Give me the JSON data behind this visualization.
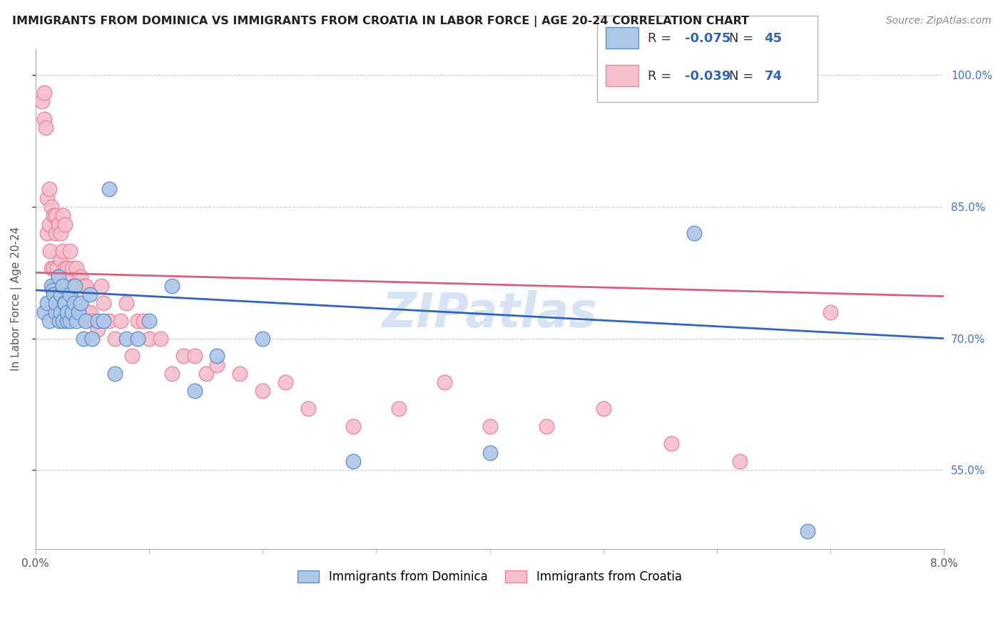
{
  "title": "IMMIGRANTS FROM DOMINICA VS IMMIGRANTS FROM CROATIA IN LABOR FORCE | AGE 20-24 CORRELATION CHART",
  "source": "Source: ZipAtlas.com",
  "ylabel": "In Labor Force | Age 20-24",
  "xlim": [
    0.0,
    0.08
  ],
  "ylim": [
    0.46,
    1.03
  ],
  "xtick_positions": [
    0.0,
    0.08
  ],
  "xtick_labels": [
    "0.0%",
    "8.0%"
  ],
  "ytick_positions": [
    0.55,
    0.7,
    0.85,
    1.0
  ],
  "ytick_labels": [
    "55.0%",
    "70.0%",
    "85.0%",
    "100.0%"
  ],
  "legend_blue_r": "-0.075",
  "legend_blue_n": "45",
  "legend_pink_r": "-0.039",
  "legend_pink_n": "74",
  "blue_fill": "#aec6e8",
  "pink_fill": "#f5bfcc",
  "blue_edge": "#5b8fc9",
  "pink_edge": "#e8839a",
  "blue_line": "#3265b5",
  "pink_line": "#d95f7f",
  "ytick_color": "#4472c4",
  "watermark_color": "#c5d8f0",
  "blue_trend_y0": 0.755,
  "blue_trend_y1": 0.7,
  "pink_trend_y0": 0.775,
  "pink_trend_y1": 0.748,
  "dominica_x": [
    0.0008,
    0.001,
    0.0012,
    0.0014,
    0.0015,
    0.0016,
    0.0018,
    0.0018,
    0.002,
    0.0021,
    0.0022,
    0.0022,
    0.0024,
    0.0024,
    0.0025,
    0.0026,
    0.0028,
    0.0028,
    0.003,
    0.003,
    0.0032,
    0.0034,
    0.0035,
    0.0036,
    0.0038,
    0.004,
    0.0042,
    0.0044,
    0.0048,
    0.005,
    0.0055,
    0.006,
    0.0065,
    0.007,
    0.008,
    0.009,
    0.01,
    0.012,
    0.014,
    0.016,
    0.02,
    0.028,
    0.04,
    0.058,
    0.068
  ],
  "dominica_y": [
    0.73,
    0.74,
    0.72,
    0.76,
    0.755,
    0.75,
    0.73,
    0.74,
    0.77,
    0.72,
    0.73,
    0.75,
    0.76,
    0.72,
    0.74,
    0.74,
    0.72,
    0.73,
    0.75,
    0.72,
    0.73,
    0.74,
    0.76,
    0.72,
    0.73,
    0.74,
    0.7,
    0.72,
    0.75,
    0.7,
    0.72,
    0.72,
    0.87,
    0.66,
    0.7,
    0.7,
    0.72,
    0.76,
    0.64,
    0.68,
    0.7,
    0.56,
    0.57,
    0.82,
    0.48
  ],
  "croatia_x": [
    0.0006,
    0.0008,
    0.0008,
    0.0009,
    0.001,
    0.001,
    0.0012,
    0.0012,
    0.0013,
    0.0014,
    0.0014,
    0.0015,
    0.0016,
    0.0016,
    0.0018,
    0.0018,
    0.0019,
    0.002,
    0.002,
    0.0022,
    0.0022,
    0.0022,
    0.0024,
    0.0024,
    0.0025,
    0.0026,
    0.0026,
    0.0028,
    0.0028,
    0.003,
    0.003,
    0.003,
    0.0032,
    0.0033,
    0.0034,
    0.0036,
    0.0038,
    0.004,
    0.004,
    0.0042,
    0.0044,
    0.0046,
    0.0048,
    0.005,
    0.0055,
    0.0058,
    0.006,
    0.0065,
    0.007,
    0.0075,
    0.008,
    0.0085,
    0.009,
    0.0095,
    0.01,
    0.011,
    0.012,
    0.013,
    0.014,
    0.015,
    0.016,
    0.018,
    0.02,
    0.022,
    0.024,
    0.028,
    0.032,
    0.036,
    0.04,
    0.045,
    0.05,
    0.056,
    0.062,
    0.07
  ],
  "croatia_y": [
    0.97,
    0.95,
    0.98,
    0.94,
    0.86,
    0.82,
    0.83,
    0.87,
    0.8,
    0.78,
    0.85,
    0.76,
    0.78,
    0.84,
    0.82,
    0.84,
    0.78,
    0.83,
    0.77,
    0.79,
    0.82,
    0.76,
    0.8,
    0.84,
    0.76,
    0.83,
    0.78,
    0.78,
    0.75,
    0.8,
    0.77,
    0.75,
    0.78,
    0.76,
    0.76,
    0.78,
    0.74,
    0.74,
    0.77,
    0.76,
    0.76,
    0.73,
    0.73,
    0.72,
    0.71,
    0.76,
    0.74,
    0.72,
    0.7,
    0.72,
    0.74,
    0.68,
    0.72,
    0.72,
    0.7,
    0.7,
    0.66,
    0.68,
    0.68,
    0.66,
    0.67,
    0.66,
    0.64,
    0.65,
    0.62,
    0.6,
    0.62,
    0.65,
    0.6,
    0.6,
    0.62,
    0.58,
    0.56,
    0.73
  ]
}
